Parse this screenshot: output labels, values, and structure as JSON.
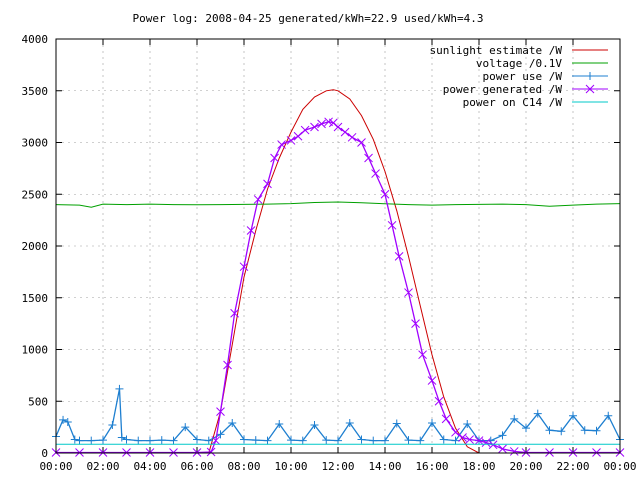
{
  "chart_data": {
    "type": "line",
    "title": "Power log: 2008-04-25 generated/kWh=22.9 used/kWh=4.3",
    "xlabel": "",
    "ylabel": "",
    "xlim": [
      0,
      24
    ],
    "ylim": [
      0,
      4000
    ],
    "grid": true,
    "legend_position": "top-right",
    "x_ticks": [
      {
        "value": 0,
        "label": "00:00"
      },
      {
        "value": 2,
        "label": "02:00"
      },
      {
        "value": 4,
        "label": "04:00"
      },
      {
        "value": 6,
        "label": "06:00"
      },
      {
        "value": 8,
        "label": "08:00"
      },
      {
        "value": 10,
        "label": "10:00"
      },
      {
        "value": 12,
        "label": "12:00"
      },
      {
        "value": 14,
        "label": "14:00"
      },
      {
        "value": 16,
        "label": "16:00"
      },
      {
        "value": 18,
        "label": "18:00"
      },
      {
        "value": 20,
        "label": "20:00"
      },
      {
        "value": 22,
        "label": "22:00"
      },
      {
        "value": 24,
        "label": "00:00"
      }
    ],
    "y_ticks": [
      {
        "value": 0,
        "label": "0"
      },
      {
        "value": 500,
        "label": "500"
      },
      {
        "value": 1000,
        "label": "1000"
      },
      {
        "value": 1500,
        "label": "1500"
      },
      {
        "value": 2000,
        "label": "2000"
      },
      {
        "value": 2500,
        "label": "2500"
      },
      {
        "value": 3000,
        "label": "3000"
      },
      {
        "value": 3500,
        "label": "3500"
      },
      {
        "value": 4000,
        "label": "4000"
      }
    ],
    "series": [
      {
        "name": "sunlight estimate /W",
        "color": "#cc0000",
        "marker": "none",
        "x": [
          6.5,
          7,
          7.5,
          8,
          8.5,
          9,
          9.5,
          10,
          10.5,
          11,
          11.5,
          11.8,
          12,
          12.5,
          13,
          13.5,
          14,
          14.5,
          15,
          15.5,
          16,
          16.5,
          17,
          17.5,
          18
        ],
        "y": [
          0,
          400,
          1050,
          1700,
          2150,
          2550,
          2850,
          3100,
          3320,
          3440,
          3500,
          3510,
          3500,
          3420,
          3260,
          3030,
          2720,
          2340,
          1900,
          1420,
          950,
          540,
          240,
          60,
          0
        ]
      },
      {
        "name": "voltage /0.1V",
        "color": "#00a000",
        "marker": "none",
        "x": [
          0,
          1,
          1.5,
          2,
          3,
          4,
          5,
          6,
          7,
          8,
          9,
          10,
          11,
          12,
          13,
          14,
          15,
          16,
          17,
          18,
          19,
          20,
          21,
          22,
          23,
          24
        ],
        "y": [
          2400,
          2395,
          2375,
          2405,
          2400,
          2405,
          2400,
          2398,
          2400,
          2402,
          2405,
          2410,
          2420,
          2425,
          2418,
          2408,
          2400,
          2395,
          2400,
          2402,
          2405,
          2400,
          2385,
          2395,
          2405,
          2410
        ]
      },
      {
        "name": "power use /W",
        "color": "#1e7fd0",
        "marker": "+",
        "x": [
          0,
          0.3,
          0.5,
          0.8,
          1.0,
          1.5,
          2.0,
          2.4,
          2.7,
          2.8,
          3.0,
          3.5,
          4.0,
          4.5,
          5.0,
          5.5,
          6.0,
          6.5,
          7.0,
          7.5,
          8.0,
          8.5,
          9.0,
          9.5,
          10.0,
          10.5,
          11.0,
          11.5,
          12.0,
          12.5,
          13.0,
          13.5,
          14.0,
          14.5,
          15.0,
          15.5,
          16.0,
          16.5,
          17.0,
          17.5,
          18.0,
          18.5,
          19.0,
          19.5,
          20.0,
          20.5,
          21.0,
          21.5,
          22.0,
          22.5,
          23.0,
          23.5,
          24.0
        ],
        "y": [
          160,
          320,
          300,
          130,
          120,
          120,
          125,
          270,
          620,
          150,
          130,
          120,
          120,
          125,
          120,
          250,
          130,
          120,
          180,
          290,
          130,
          125,
          120,
          280,
          125,
          120,
          270,
          125,
          120,
          290,
          130,
          120,
          120,
          285,
          125,
          120,
          290,
          130,
          120,
          280,
          120,
          120,
          170,
          330,
          240,
          380,
          220,
          210,
          360,
          220,
          215,
          360,
          130
        ]
      },
      {
        "name": "power generated /W",
        "color": "#a000ff",
        "marker": "x",
        "x": [
          0,
          1,
          2,
          3,
          4,
          5,
          6,
          6.6,
          6.8,
          7.0,
          7.3,
          7.6,
          8.0,
          8.3,
          8.6,
          9.0,
          9.3,
          9.6,
          10.0,
          10.3,
          10.6,
          11.0,
          11.3,
          11.6,
          11.8,
          12.0,
          12.3,
          12.6,
          13.0,
          13.3,
          13.6,
          14.0,
          14.3,
          14.6,
          15.0,
          15.3,
          15.6,
          16.0,
          16.3,
          16.6,
          17.0,
          17.3,
          17.6,
          18.0,
          18.3,
          18.6,
          19.0,
          19.5,
          20,
          21,
          22,
          23,
          24
        ],
        "y": [
          5,
          5,
          5,
          5,
          5,
          5,
          5,
          10,
          120,
          400,
          850,
          1350,
          1800,
          2150,
          2450,
          2600,
          2850,
          2980,
          3020,
          3060,
          3120,
          3150,
          3180,
          3200,
          3190,
          3150,
          3100,
          3050,
          3000,
          2850,
          2700,
          2500,
          2200,
          1900,
          1550,
          1250,
          950,
          700,
          500,
          330,
          200,
          150,
          130,
          120,
          100,
          80,
          40,
          15,
          5,
          5,
          5,
          5,
          5
        ]
      },
      {
        "name": "power on C14 /W",
        "color": "#00c8c8",
        "marker": "none",
        "x": [
          0,
          2,
          4,
          6,
          8,
          10,
          12,
          14,
          16,
          18,
          20,
          22,
          24
        ],
        "y": [
          85,
          85,
          84,
          85,
          85,
          84,
          85,
          85,
          84,
          85,
          85,
          84,
          85
        ]
      }
    ]
  }
}
